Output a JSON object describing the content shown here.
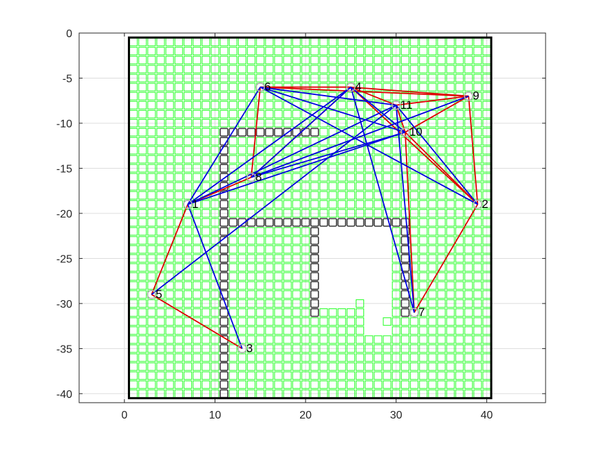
{
  "chart_data": {
    "type": "scatter",
    "title": "",
    "xlabel": "",
    "ylabel": "",
    "xlim": [
      -5,
      46.5
    ],
    "ylim": [
      -41,
      0
    ],
    "xticks": [
      0,
      10,
      20,
      30,
      40
    ],
    "yticks": [
      0,
      -5,
      -10,
      -15,
      -20,
      -25,
      -30,
      -35,
      -40
    ],
    "grid": true,
    "nodes": [
      {
        "id": "1",
        "x": 7,
        "y": -19
      },
      {
        "id": "2",
        "x": 39,
        "y": -19
      },
      {
        "id": "3",
        "x": 13,
        "y": -35
      },
      {
        "id": "4",
        "x": 25,
        "y": -6
      },
      {
        "id": "5",
        "x": 3,
        "y": -29
      },
      {
        "id": "6",
        "x": 15,
        "y": -6
      },
      {
        "id": "7",
        "x": 32,
        "y": -31
      },
      {
        "id": "8",
        "x": 14,
        "y": -16
      },
      {
        "id": "9",
        "x": 38,
        "y": -7
      },
      {
        "id": "10",
        "x": 31,
        "y": -11
      },
      {
        "id": "11",
        "x": 30,
        "y": -8
      }
    ],
    "edges_red": [
      [
        "6",
        "4"
      ],
      [
        "6",
        "9"
      ],
      [
        "6",
        "8"
      ],
      [
        "4",
        "9"
      ],
      [
        "4",
        "11"
      ],
      [
        "4",
        "2"
      ],
      [
        "4",
        "8"
      ],
      [
        "9",
        "2"
      ],
      [
        "9",
        "10"
      ],
      [
        "11",
        "9"
      ],
      [
        "11",
        "10"
      ],
      [
        "10",
        "2"
      ],
      [
        "2",
        "7"
      ],
      [
        "7",
        "10"
      ],
      [
        "8",
        "1"
      ],
      [
        "1",
        "5"
      ],
      [
        "5",
        "3"
      ]
    ],
    "edges_blue": [
      [
        "6",
        "10"
      ],
      [
        "6",
        "11"
      ],
      [
        "6",
        "1"
      ],
      [
        "6",
        "2"
      ],
      [
        "4",
        "1"
      ],
      [
        "4",
        "10"
      ],
      [
        "4",
        "7"
      ],
      [
        "11",
        "1"
      ],
      [
        "11",
        "7"
      ],
      [
        "11",
        "2"
      ],
      [
        "8",
        "10"
      ],
      [
        "8",
        "9"
      ],
      [
        "8",
        "4"
      ],
      [
        "1",
        "3"
      ],
      [
        "1",
        "10"
      ],
      [
        "5",
        "11"
      ]
    ],
    "grid_cells": {
      "x_range": [
        1,
        40
      ],
      "y_range": [
        -40,
        -1
      ],
      "empty_cells": [
        [
          22,
          -21
        ],
        [
          23,
          -21
        ],
        [
          24,
          -21
        ],
        [
          25,
          -21
        ],
        [
          26,
          -21
        ],
        [
          27,
          -21
        ],
        [
          28,
          -21
        ],
        [
          29,
          -21
        ],
        [
          22,
          -22
        ],
        [
          23,
          -22
        ],
        [
          24,
          -22
        ],
        [
          25,
          -22
        ],
        [
          26,
          -22
        ],
        [
          27,
          -22
        ],
        [
          28,
          -22
        ],
        [
          29,
          -22
        ],
        [
          22,
          -23
        ],
        [
          23,
          -23
        ],
        [
          24,
          -23
        ],
        [
          25,
          -23
        ],
        [
          26,
          -23
        ],
        [
          27,
          -23
        ],
        [
          28,
          -23
        ],
        [
          29,
          -23
        ],
        [
          22,
          -24
        ],
        [
          23,
          -24
        ],
        [
          24,
          -24
        ],
        [
          25,
          -24
        ],
        [
          26,
          -24
        ],
        [
          27,
          -24
        ],
        [
          28,
          -24
        ],
        [
          29,
          -24
        ],
        [
          22,
          -25
        ],
        [
          23,
          -25
        ],
        [
          24,
          -25
        ],
        [
          25,
          -25
        ],
        [
          26,
          -25
        ],
        [
          27,
          -25
        ],
        [
          28,
          -25
        ],
        [
          29,
          -25
        ],
        [
          22,
          -26
        ],
        [
          23,
          -26
        ],
        [
          24,
          -26
        ],
        [
          25,
          -26
        ],
        [
          26,
          -26
        ],
        [
          27,
          -26
        ],
        [
          28,
          -26
        ],
        [
          29,
          -26
        ],
        [
          22,
          -27
        ],
        [
          23,
          -27
        ],
        [
          24,
          -27
        ],
        [
          25,
          -27
        ],
        [
          26,
          -27
        ],
        [
          27,
          -27
        ],
        [
          28,
          -27
        ],
        [
          29,
          -27
        ],
        [
          22,
          -28
        ],
        [
          23,
          -28
        ],
        [
          24,
          -28
        ],
        [
          25,
          -28
        ],
        [
          26,
          -28
        ],
        [
          27,
          -28
        ],
        [
          28,
          -28
        ],
        [
          29,
          -28
        ],
        [
          22,
          -29
        ],
        [
          23,
          -29
        ],
        [
          24,
          -29
        ],
        [
          25,
          -29
        ],
        [
          26,
          -29
        ],
        [
          27,
          -29
        ],
        [
          28,
          -29
        ],
        [
          29,
          -29
        ],
        [
          22,
          -30
        ],
        [
          23,
          -30
        ],
        [
          24,
          -30
        ],
        [
          25,
          -30
        ],
        [
          27,
          -30
        ],
        [
          28,
          -30
        ],
        [
          29,
          -30
        ],
        [
          27,
          -31
        ],
        [
          28,
          -31
        ],
        [
          29,
          -31
        ],
        [
          27,
          -32
        ],
        [
          28,
          -32
        ],
        [
          27,
          -33
        ],
        [
          28,
          -33
        ],
        [
          29,
          -33
        ]
      ],
      "obstacles": [
        [
          11,
          -11
        ],
        [
          12,
          -11
        ],
        [
          13,
          -11
        ],
        [
          14,
          -11
        ],
        [
          15,
          -11
        ],
        [
          16,
          -11
        ],
        [
          17,
          -11
        ],
        [
          18,
          -11
        ],
        [
          19,
          -11
        ],
        [
          20,
          -11
        ],
        [
          21,
          -11
        ],
        [
          11,
          -12
        ],
        [
          11,
          -13
        ],
        [
          11,
          -14
        ],
        [
          11,
          -15
        ],
        [
          11,
          -16
        ],
        [
          11,
          -17
        ],
        [
          11,
          -18
        ],
        [
          11,
          -19
        ],
        [
          11,
          -20
        ],
        [
          11,
          -21
        ],
        [
          11,
          -22
        ],
        [
          11,
          -23
        ],
        [
          11,
          -24
        ],
        [
          11,
          -25
        ],
        [
          11,
          -26
        ],
        [
          11,
          -27
        ],
        [
          11,
          -28
        ],
        [
          11,
          -29
        ],
        [
          11,
          -30
        ],
        [
          11,
          -31
        ],
        [
          11,
          -32
        ],
        [
          11,
          -33
        ],
        [
          11,
          -34
        ],
        [
          11,
          -35
        ],
        [
          11,
          -36
        ],
        [
          11,
          -37
        ],
        [
          11,
          -38
        ],
        [
          11,
          -39
        ],
        [
          11,
          -40
        ],
        [
          12,
          -21
        ],
        [
          13,
          -21
        ],
        [
          14,
          -21
        ],
        [
          15,
          -21
        ],
        [
          16,
          -21
        ],
        [
          17,
          -21
        ],
        [
          18,
          -21
        ],
        [
          19,
          -21
        ],
        [
          20,
          -21
        ],
        [
          21,
          -21
        ],
        [
          22,
          -21
        ],
        [
          23,
          -21
        ],
        [
          24,
          -21
        ],
        [
          25,
          -21
        ],
        [
          26,
          -21
        ],
        [
          27,
          -21
        ],
        [
          28,
          -21
        ],
        [
          29,
          -21
        ],
        [
          30,
          -21
        ],
        [
          31,
          -21
        ],
        [
          21,
          -22
        ],
        [
          21,
          -23
        ],
        [
          21,
          -24
        ],
        [
          21,
          -25
        ],
        [
          21,
          -26
        ],
        [
          21,
          -27
        ],
        [
          21,
          -28
        ],
        [
          21,
          -29
        ],
        [
          21,
          -30
        ],
        [
          21,
          -31
        ],
        [
          31,
          -22
        ],
        [
          31,
          -23
        ],
        [
          31,
          -24
        ],
        [
          31,
          -25
        ],
        [
          31,
          -26
        ],
        [
          31,
          -27
        ],
        [
          31,
          -28
        ],
        [
          31,
          -29
        ],
        [
          31,
          -30
        ],
        [
          31,
          -31
        ]
      ]
    },
    "colors": {
      "grid_cell": "#33ff33",
      "obstacle": "#3a3a3a",
      "edge_red": "#e00000",
      "edge_blue": "#0000e0",
      "node_marker": "#b0b0b0",
      "axis": "#262626",
      "gridline": "#dcdcdc"
    }
  }
}
